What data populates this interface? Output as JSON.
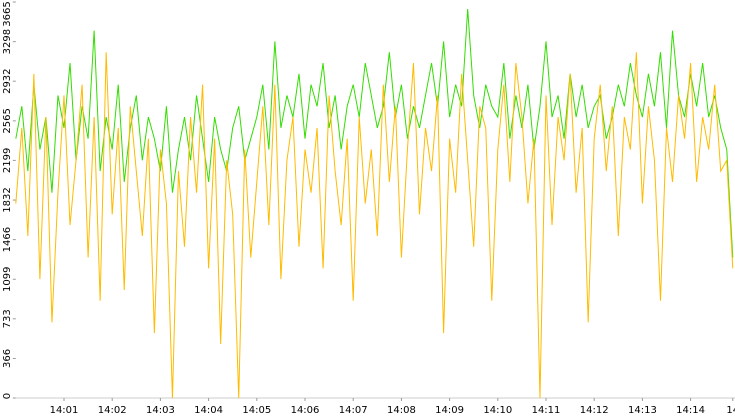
{
  "chart_data": {
    "type": "line",
    "categories": [
      null,
      null,
      null,
      null,
      null,
      null,
      null,
      null,
      "14:01",
      null,
      null,
      null,
      null,
      null,
      null,
      null,
      "14:02",
      null,
      null,
      null,
      null,
      null,
      null,
      null,
      "14:03",
      null,
      null,
      null,
      null,
      null,
      null,
      null,
      "14:04",
      null,
      null,
      null,
      null,
      null,
      null,
      null,
      "14:05",
      null,
      null,
      null,
      null,
      null,
      null,
      null,
      "14:06",
      null,
      null,
      null,
      null,
      null,
      null,
      null,
      "14:07",
      null,
      null,
      null,
      null,
      null,
      null,
      null,
      "14:08",
      null,
      null,
      null,
      null,
      null,
      null,
      null,
      "14:09",
      null,
      null,
      null,
      null,
      null,
      null,
      null,
      "14:10",
      null,
      null,
      null,
      null,
      null,
      null,
      null,
      "14:11",
      null,
      null,
      null,
      null,
      null,
      null,
      null,
      "14:12",
      null,
      null,
      null,
      null,
      null,
      null,
      null,
      "14:13",
      null,
      null,
      null,
      null,
      null,
      null,
      null,
      "14:14",
      null,
      null,
      null,
      null,
      null,
      null,
      "14"
    ],
    "series": [
      {
        "color": "#33dd00",
        "values": [
          2400,
          2700,
          2100,
          2900,
          2300,
          2600,
          1900,
          2800,
          2500,
          3100,
          2200,
          2700,
          2400,
          3400,
          2100,
          2600,
          2300,
          2900,
          2000,
          2500,
          2800,
          2200,
          2600,
          2400,
          2100,
          2700,
          1900,
          2300,
          2600,
          2200,
          2800,
          2400,
          2000,
          2600,
          2300,
          2100,
          2500,
          2700,
          2200,
          2400,
          2600,
          2900,
          2300,
          3300,
          2500,
          2800,
          2600,
          3000,
          2400,
          2900,
          2700,
          3100,
          2500,
          2800,
          2300,
          2700,
          2900,
          2600,
          3100,
          2800,
          2500,
          2700,
          3200,
          2600,
          2900,
          2400,
          2700,
          2500,
          2800,
          3100,
          2700,
          3300,
          2600,
          2900,
          2700,
          3600,
          2800,
          2500,
          2900,
          2700,
          2600,
          3100,
          2400,
          2800,
          2500,
          2900,
          2300,
          2700,
          3300,
          2600,
          2800,
          2400,
          3000,
          2600,
          2900,
          2500,
          2700,
          2800,
          2400,
          2600,
          2900,
          2700,
          3100,
          2800,
          2600,
          3000,
          2700,
          3200,
          2500,
          3400,
          2800,
          2600,
          3000,
          2700,
          3100,
          2600,
          2800,
          2500,
          2300,
          1300
        ]
      },
      {
        "color": "#ffbb00",
        "values": [
          1800,
          2500,
          1500,
          3000,
          1100,
          2600,
          700,
          1900,
          2800,
          1600,
          2200,
          2900,
          1300,
          2600,
          900,
          3200,
          1700,
          2500,
          1000,
          2700,
          2100,
          1500,
          2400,
          600,
          2300,
          1800,
          0,
          2100,
          1400,
          2600,
          1900,
          2900,
          1200,
          2400,
          500,
          2200,
          1700,
          0,
          2300,
          1300,
          2000,
          2700,
          1600,
          2900,
          1100,
          2200,
          2600,
          1400,
          2300,
          1900,
          2500,
          1200,
          2800,
          2100,
          1600,
          2400,
          900,
          2600,
          1800,
          2300,
          1500,
          2900,
          2000,
          2700,
          1300,
          2300,
          3100,
          1700,
          2500,
          2100,
          2800,
          600,
          2400,
          1900,
          3000,
          2200,
          1400,
          2700,
          2500,
          900,
          2300,
          2900,
          2000,
          3100,
          2600,
          1800,
          2400,
          0,
          2800,
          1600,
          2600,
          2200,
          3000,
          1900,
          2500,
          700,
          2400,
          2900,
          2100,
          2700,
          1500,
          2600,
          2300,
          3200,
          1800,
          2700,
          2200,
          900,
          2500,
          2000,
          2800,
          2400,
          3100,
          2000,
          2600,
          2300,
          2900,
          2100,
          2200,
          1200
        ]
      }
    ],
    "ylim": [
      0,
      3665
    ],
    "yticks": [
      0,
      366,
      733,
      1099,
      1466,
      1832,
      2199,
      2565,
      2932,
      3298,
      3665
    ]
  }
}
